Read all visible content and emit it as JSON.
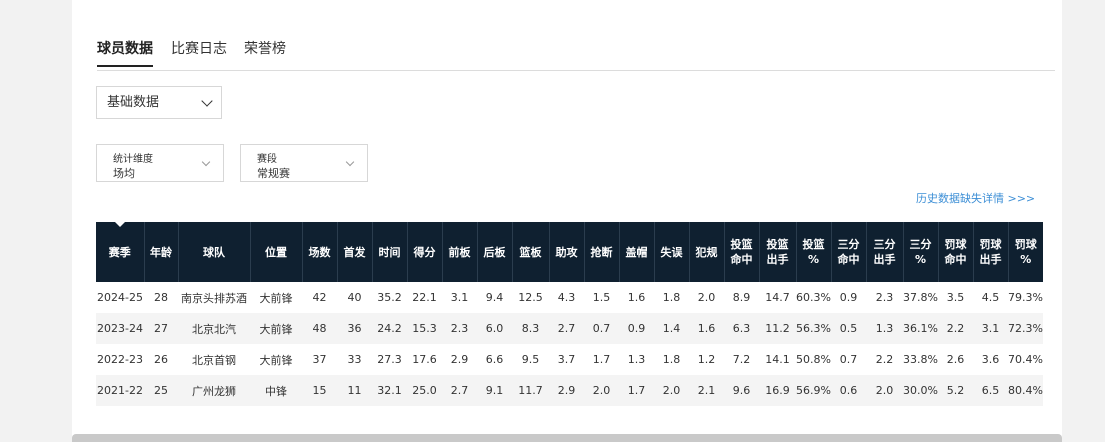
{
  "tabs": [
    "球员数据",
    "比赛日志",
    "荣誉榜"
  ],
  "stat_type_select": "基础数据",
  "filters": [
    {
      "label": "统计维度",
      "value": "场均"
    },
    {
      "label": "赛段",
      "value": "常规赛"
    }
  ],
  "history_link": "历史数据缺失详情 >>>",
  "table": {
    "headers": [
      "赛季",
      "年龄",
      "球队",
      "位置",
      "场数",
      "首发",
      "时间",
      "得分",
      "前板",
      "后板",
      "篮板",
      "助攻",
      "抢断",
      "盖帽",
      "失误",
      "犯规",
      "投篮 命中",
      "投篮 出手",
      "投篮 %",
      "三分 命中",
      "三分 出手",
      "三分 %",
      "罚球 命中",
      "罚球 出手",
      "罚球 %"
    ],
    "rows": [
      [
        "2024-25",
        "28",
        "南京头排苏酒",
        "大前锋",
        "42",
        "40",
        "35.2",
        "22.1",
        "3.1",
        "9.4",
        "12.5",
        "4.3",
        "1.5",
        "1.6",
        "1.8",
        "2.0",
        "8.9",
        "14.7",
        "60.3%",
        "0.9",
        "2.3",
        "37.8%",
        "3.5",
        "4.5",
        "79.3%"
      ],
      [
        "2023-24",
        "27",
        "北京北汽",
        "大前锋",
        "48",
        "36",
        "24.2",
        "15.3",
        "2.3",
        "6.0",
        "8.3",
        "2.7",
        "0.7",
        "0.9",
        "1.4",
        "1.6",
        "6.3",
        "11.2",
        "56.3%",
        "0.5",
        "1.3",
        "36.1%",
        "2.2",
        "3.1",
        "72.3%"
      ],
      [
        "2022-23",
        "26",
        "北京首钢",
        "大前锋",
        "37",
        "33",
        "27.3",
        "17.6",
        "2.9",
        "6.6",
        "9.5",
        "3.7",
        "1.7",
        "1.3",
        "1.8",
        "1.2",
        "7.2",
        "14.1",
        "50.8%",
        "0.7",
        "2.2",
        "33.8%",
        "2.6",
        "3.6",
        "70.4%"
      ],
      [
        "2021-22",
        "25",
        "广州龙狮",
        "中锋",
        "15",
        "11",
        "32.1",
        "25.0",
        "2.7",
        "9.1",
        "11.7",
        "2.9",
        "2.0",
        "1.7",
        "2.0",
        "2.1",
        "9.6",
        "16.9",
        "56.9%",
        "0.6",
        "2.0",
        "30.0%",
        "5.2",
        "6.5",
        "80.4%"
      ]
    ]
  }
}
